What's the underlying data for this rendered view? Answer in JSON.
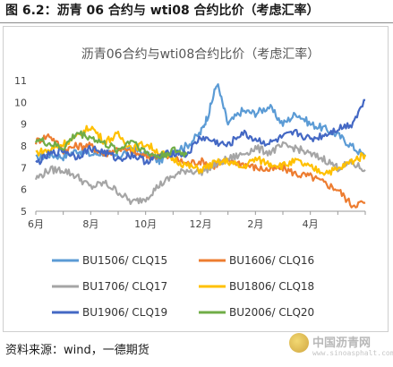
{
  "caption": "图 6.2：沥青 06 合约与 wti08 合约比价（考虑汇率）",
  "source": "资料来源：wind，一德期货",
  "watermark": {
    "text": "中国沥青网",
    "url": "www.sinoasphalt.com"
  },
  "colors": {
    "BU1506": "#5b9bd5",
    "BU1606": "#ed7d31",
    "BU1706": "#a5a5a5",
    "BU1806": "#ffc000",
    "BU1906": "#4468c4",
    "BU2006": "#70ad47"
  },
  "chart_data": {
    "type": "line",
    "title": "沥青06合约与wti08合约比价（考虑汇率）",
    "xlabel": "",
    "ylabel": "",
    "x_ticks": [
      "6月",
      "8月",
      "10月",
      "12月",
      "2月",
      "4月"
    ],
    "x_range": [
      0,
      12
    ],
    "ylim": [
      5,
      11
    ],
    "y_ticks": [
      5,
      6,
      7,
      8,
      9,
      10,
      11
    ],
    "grid": false,
    "legend": "bottom",
    "series": [
      {
        "name": "BU1506/ CLQ15",
        "color": "#5b9bd5",
        "x": [
          0,
          0.5,
          1,
          1.5,
          2,
          2.5,
          3,
          3.5,
          4,
          4.5,
          5,
          5.5,
          6,
          6.3,
          6.6,
          7,
          7.5,
          8,
          8.5,
          9,
          9.5,
          10,
          10.5,
          11,
          11.5,
          12
        ],
        "values": [
          7.4,
          7.6,
          7.5,
          7.8,
          7.6,
          7.7,
          7.5,
          7.9,
          7.6,
          7.3,
          7.8,
          8.0,
          8.6,
          9.5,
          10.9,
          9.0,
          9.6,
          9.5,
          9.8,
          9.0,
          9.5,
          9.0,
          8.8,
          8.5,
          8.0,
          7.5
        ]
      },
      {
        "name": "BU1606/ CLQ16",
        "color": "#ed7d31",
        "x": [
          0,
          0.5,
          1,
          1.5,
          2,
          2.5,
          3,
          3.5,
          4,
          4.5,
          5,
          5.5,
          6,
          6.5,
          7,
          7.5,
          8,
          8.5,
          9,
          9.5,
          10,
          10.5,
          11,
          11.5,
          12
        ],
        "values": [
          8.2,
          8.5,
          7.8,
          8.0,
          8.0,
          7.6,
          7.9,
          7.7,
          7.5,
          7.6,
          7.4,
          7.2,
          7.3,
          7.1,
          7.3,
          7.2,
          7.0,
          6.9,
          7.0,
          6.7,
          6.6,
          6.3,
          6.0,
          5.3,
          5.4
        ]
      },
      {
        "name": "BU1706/ CLQ17",
        "color": "#a5a5a5",
        "x": [
          0,
          0.5,
          1,
          1.5,
          2,
          2.5,
          3,
          3.5,
          4,
          4.5,
          5,
          5.5,
          6,
          6.5,
          7,
          7.5,
          8,
          8.5,
          9,
          9.5,
          10,
          10.5,
          11,
          11.5,
          12
        ],
        "values": [
          6.5,
          6.9,
          6.9,
          6.6,
          6.1,
          6.3,
          5.9,
          5.4,
          5.6,
          6.2,
          6.6,
          6.9,
          6.8,
          7.1,
          7.4,
          7.6,
          7.9,
          7.7,
          8.0,
          7.9,
          7.6,
          7.4,
          7.0,
          7.2,
          6.9
        ]
      },
      {
        "name": "BU1806/ CLQ18",
        "color": "#ffc000",
        "x": [
          0,
          0.5,
          1,
          1.5,
          2,
          2.5,
          3,
          3.5,
          4,
          4.5,
          5,
          5.5,
          6,
          6.5,
          7,
          7.5,
          8,
          8.5,
          9,
          9.5,
          10,
          10.5,
          11,
          11.5,
          12
        ],
        "values": [
          7.7,
          7.8,
          8.1,
          8.4,
          8.9,
          8.2,
          8.5,
          7.9,
          8.1,
          7.7,
          7.4,
          7.1,
          6.9,
          7.2,
          7.3,
          7.0,
          7.4,
          7.2,
          7.1,
          7.3,
          7.0,
          6.8,
          6.9,
          7.3,
          7.6
        ]
      },
      {
        "name": "BU1906/ CLQ19",
        "color": "#4468c4",
        "x": [
          0,
          0.5,
          1,
          1.5,
          2,
          2.5,
          3,
          3.5,
          4,
          4.5,
          5,
          5.5,
          6,
          6.5,
          7,
          7.5,
          8,
          8.5,
          9,
          9.5,
          10,
          10.5,
          11,
          11.5,
          12
        ],
        "values": [
          7.2,
          7.6,
          7.8,
          7.5,
          7.9,
          7.7,
          7.4,
          7.6,
          7.3,
          7.5,
          7.7,
          7.6,
          8.4,
          8.2,
          8.0,
          8.6,
          8.3,
          8.1,
          8.4,
          8.6,
          8.3,
          8.5,
          8.8,
          9.0,
          10.1
        ]
      },
      {
        "name": "BU2006/ CLQ20",
        "color": "#70ad47",
        "x": [
          0,
          0.5,
          1,
          1.5,
          2,
          2.5,
          3,
          3.5,
          4,
          4.5,
          5,
          5.5
        ],
        "values": [
          8.3,
          8.1,
          7.9,
          8.6,
          8.4,
          8.1,
          7.8,
          8.3,
          7.7,
          7.5,
          7.8,
          7.6
        ]
      }
    ]
  }
}
